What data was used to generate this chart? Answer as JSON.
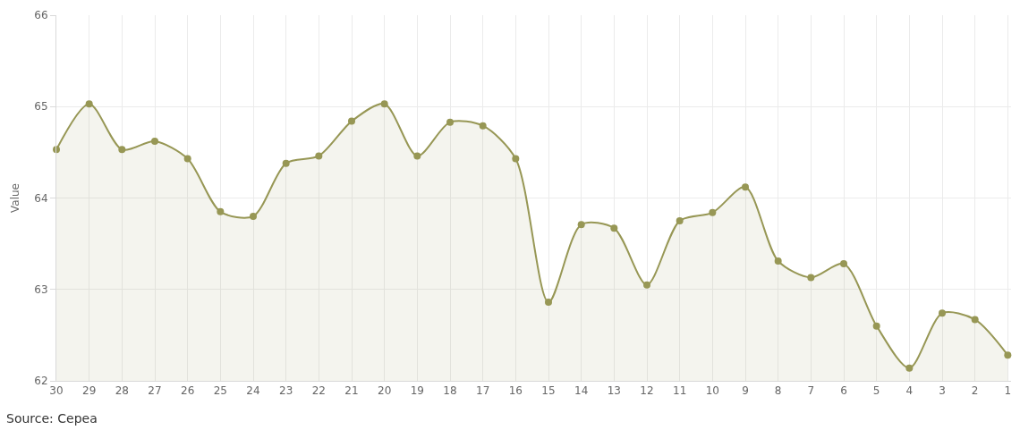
{
  "chart_data": {
    "type": "area",
    "ylabel": "Value",
    "categories": [
      "30",
      "29",
      "28",
      "27",
      "26",
      "25",
      "24",
      "23",
      "22",
      "21",
      "20",
      "19",
      "18",
      "17",
      "16",
      "15",
      "14",
      "13",
      "12",
      "11",
      "10",
      "9",
      "8",
      "7",
      "6",
      "5",
      "4",
      "3",
      "2",
      "1"
    ],
    "series": [
      {
        "color": "#979755",
        "values": [
          64.53,
          65.03,
          64.53,
          64.62,
          64.43,
          63.85,
          63.8,
          64.38,
          64.46,
          64.84,
          65.03,
          64.46,
          64.83,
          64.79,
          64.43,
          62.86,
          63.71,
          63.67,
          63.05,
          63.75,
          63.84,
          64.12,
          63.31,
          63.13,
          63.28,
          62.6,
          62.14,
          62.74,
          62.67,
          62.28
        ]
      }
    ],
    "ylim": [
      62,
      66
    ],
    "yticks": [
      62,
      63,
      64,
      65,
      66
    ],
    "grid": true,
    "marker": "circle",
    "line_style": "solid",
    "annotations": [
      "Source: Cepea"
    ]
  }
}
